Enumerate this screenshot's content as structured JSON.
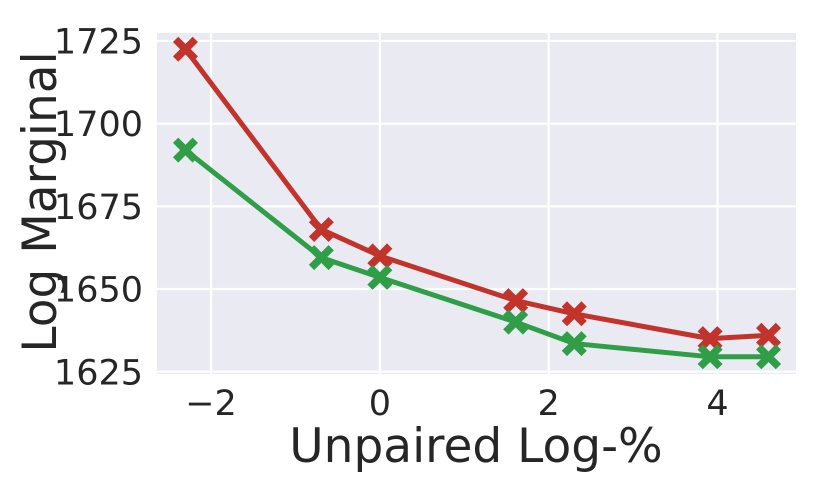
{
  "chart_data": {
    "type": "line",
    "title": "",
    "xlabel": "Unpaired Log-%",
    "ylabel": "Log Marginal",
    "x": [
      -2.303,
      -0.693,
      0.0,
      1.609,
      2.303,
      3.912,
      4.605
    ],
    "series": [
      {
        "name": "red-series",
        "color": "#c1332b",
        "marker": "X",
        "values": [
          1722.5,
          1668.0,
          1660.0,
          1646.5,
          1642.5,
          1635.0,
          1636.0
        ]
      },
      {
        "name": "green-series",
        "color": "#2f9e46",
        "marker": "X",
        "values": [
          1692.0,
          1659.5,
          1653.5,
          1640.0,
          1633.5,
          1629.5,
          1629.5
        ]
      }
    ],
    "xlim": [
      -2.64,
      4.93
    ],
    "ylim": [
      1624.3,
      1727.4
    ],
    "xticks": {
      "values": [
        -2,
        0,
        2,
        4
      ],
      "labels": [
        "−2",
        "0",
        "2",
        "4"
      ]
    },
    "yticks": {
      "values": [
        1625,
        1650,
        1675,
        1700,
        1725
      ],
      "labels": [
        "1625",
        "1650",
        "1675",
        "1700",
        "1725"
      ]
    },
    "grid": true,
    "legend": "none",
    "style": {
      "plot_bg": "#eaeaf2",
      "grid_color": "#ffffff",
      "fig_bg": "#ffffff",
      "text_color": "#262626"
    }
  }
}
